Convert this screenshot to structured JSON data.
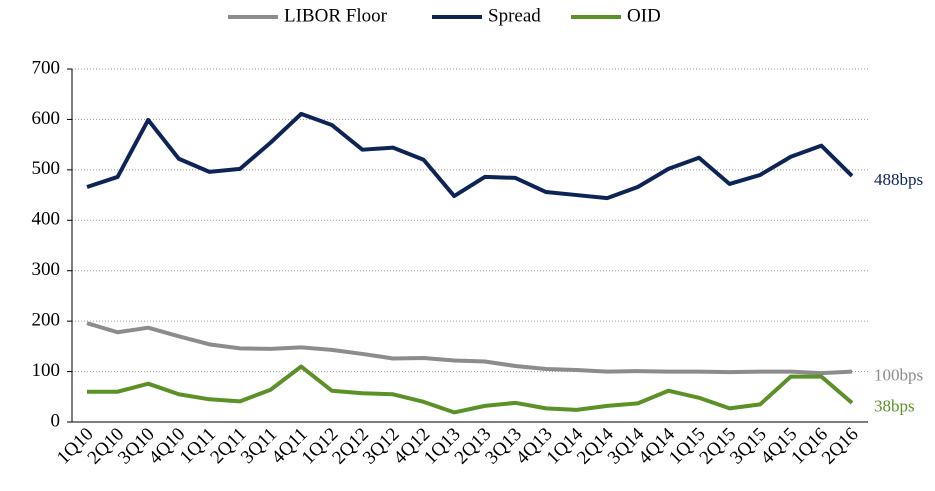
{
  "chart_data": {
    "type": "line",
    "categories": [
      "1Q10",
      "2Q10",
      "3Q10",
      "4Q10",
      "1Q11",
      "2Q11",
      "3Q11",
      "4Q11",
      "1Q12",
      "2Q12",
      "3Q12",
      "4Q12",
      "1Q13",
      "2Q13",
      "3Q13",
      "4Q13",
      "1Q14",
      "2Q14",
      "3Q14",
      "4Q14",
      "1Q15",
      "2Q15",
      "3Q15",
      "4Q15",
      "1Q16",
      "2Q16"
    ],
    "series": [
      {
        "name": "LIBOR Floor",
        "color": "#8c8c8c",
        "end_label": "100bps",
        "values": [
          196,
          178,
          187,
          170,
          154,
          146,
          145,
          148,
          143,
          135,
          126,
          127,
          122,
          120,
          111,
          105,
          103,
          100,
          101,
          100,
          100,
          99,
          100,
          100,
          97,
          100
        ]
      },
      {
        "name": "Spread",
        "color": "#0c2456",
        "end_label": "488bps",
        "values": [
          466,
          486,
          599,
          522,
          496,
          502,
          554,
          611,
          589,
          540,
          544,
          520,
          448,
          486,
          484,
          456,
          450,
          444,
          466,
          502,
          524,
          472,
          490,
          526,
          548,
          488
        ]
      },
      {
        "name": "OID",
        "color": "#5b9127",
        "end_label": "38bps",
        "values": [
          60,
          60,
          76,
          55,
          45,
          41,
          64,
          110,
          62,
          57,
          55,
          40,
          19,
          32,
          38,
          27,
          24,
          32,
          37,
          62,
          48,
          27,
          35,
          90,
          90,
          38
        ]
      }
    ],
    "ylim": [
      0,
      700
    ],
    "yticks": [
      0,
      100,
      200,
      300,
      400,
      500,
      600,
      700
    ],
    "grid": true
  }
}
